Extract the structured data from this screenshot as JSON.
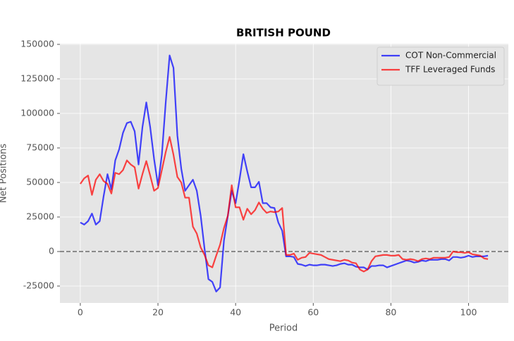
{
  "chart_data": {
    "type": "line",
    "title": "BRITISH POUND",
    "xlabel": "Period",
    "ylabel": "Net Positions",
    "x": [
      0,
      1,
      2,
      3,
      4,
      5,
      6,
      7,
      8,
      9,
      10,
      11,
      12,
      13,
      14,
      15,
      16,
      17,
      18,
      19,
      20,
      21,
      22,
      23,
      24,
      25,
      26,
      27,
      28,
      29,
      30,
      31,
      32,
      33,
      34,
      35,
      36,
      37,
      38,
      39,
      40,
      41,
      42,
      43,
      44,
      45,
      46,
      47,
      48,
      49,
      50,
      51,
      52,
      53,
      54,
      55,
      56,
      57,
      58,
      59,
      60,
      61,
      62,
      63,
      64,
      65,
      66,
      67,
      68,
      69,
      70,
      71,
      72,
      73,
      74,
      75,
      76,
      77,
      78,
      79,
      80,
      81,
      82,
      83,
      84,
      85,
      86,
      87,
      88,
      89,
      90,
      91,
      92,
      93,
      94,
      95,
      96,
      97,
      98,
      99,
      100,
      101,
      102,
      103,
      104,
      105
    ],
    "series": [
      {
        "name": "COT Non-Commercial",
        "color": "#0000ff",
        "values": [
          21000,
          19500,
          22000,
          27500,
          19500,
          22000,
          40000,
          56000,
          45000,
          66000,
          74000,
          86000,
          93000,
          94000,
          87000,
          63000,
          90000,
          108000,
          90000,
          67000,
          48000,
          70000,
          108000,
          142000,
          133000,
          84000,
          60000,
          44000,
          48000,
          52000,
          44000,
          26000,
          2000,
          -20000,
          -22000,
          -29000,
          -26000,
          8000,
          26000,
          44000,
          35000,
          52000,
          70500,
          58000,
          46500,
          46500,
          50500,
          35000,
          35000,
          32000,
          31500,
          21000,
          15000,
          -3500,
          -3500,
          -4000,
          -9000,
          -9500,
          -10500,
          -9500,
          -10000,
          -10000,
          -9500,
          -9500,
          -10000,
          -10500,
          -10000,
          -9000,
          -8500,
          -9500,
          -9500,
          -11000,
          -11500,
          -11500,
          -13000,
          -10500,
          -10500,
          -10000,
          -10000,
          -11500,
          -10500,
          -9500,
          -8500,
          -7500,
          -6500,
          -7000,
          -8000,
          -7500,
          -6500,
          -7000,
          -6000,
          -6000,
          -6000,
          -5500,
          -5500,
          -6500,
          -4000,
          -4000,
          -4500,
          -4000,
          -3000,
          -4000,
          -3500,
          -3500,
          -3500,
          -3000
        ]
      },
      {
        "name": "TFF Leveraged Funds",
        "color": "#ff0000",
        "values": [
          49000,
          53000,
          55000,
          41000,
          52000,
          56000,
          51000,
          49000,
          42000,
          57000,
          56000,
          59000,
          66000,
          63000,
          61000,
          45500,
          56000,
          65500,
          55000,
          44000,
          46000,
          59000,
          72000,
          83000,
          70000,
          54000,
          50000,
          39000,
          39000,
          18000,
          13000,
          3000,
          -2500,
          -10000,
          -11500,
          -3000,
          5000,
          17000,
          26000,
          48000,
          32000,
          32000,
          23000,
          31000,
          27000,
          30000,
          35500,
          31000,
          28000,
          29000,
          28500,
          29000,
          31500,
          -2500,
          -2500,
          -1500,
          -6000,
          -4500,
          -4000,
          -1000,
          -1500,
          -2000,
          -2500,
          -4000,
          -5500,
          -6000,
          -6500,
          -7000,
          -6000,
          -6500,
          -8000,
          -8500,
          -13000,
          -14500,
          -13000,
          -7000,
          -3500,
          -3000,
          -2500,
          -2500,
          -3000,
          -3000,
          -2500,
          -5500,
          -6000,
          -5500,
          -6000,
          -7000,
          -5500,
          -5000,
          -5500,
          -4500,
          -4500,
          -4500,
          -4500,
          -4000,
          0,
          -500,
          -500,
          -1000,
          -500,
          -2000,
          -2500,
          -3000,
          -5000,
          -5500
        ]
      }
    ],
    "xlim": [
      -5.25,
      110.25
    ],
    "xticks": [
      0,
      20,
      40,
      60,
      80,
      100
    ],
    "ylim": [
      -37250,
      150500
    ],
    "yticks": [
      -25000,
      0,
      25000,
      50000,
      75000,
      100000,
      125000,
      150000
    ],
    "hline": 0,
    "grid": true,
    "legend": "upper right"
  }
}
